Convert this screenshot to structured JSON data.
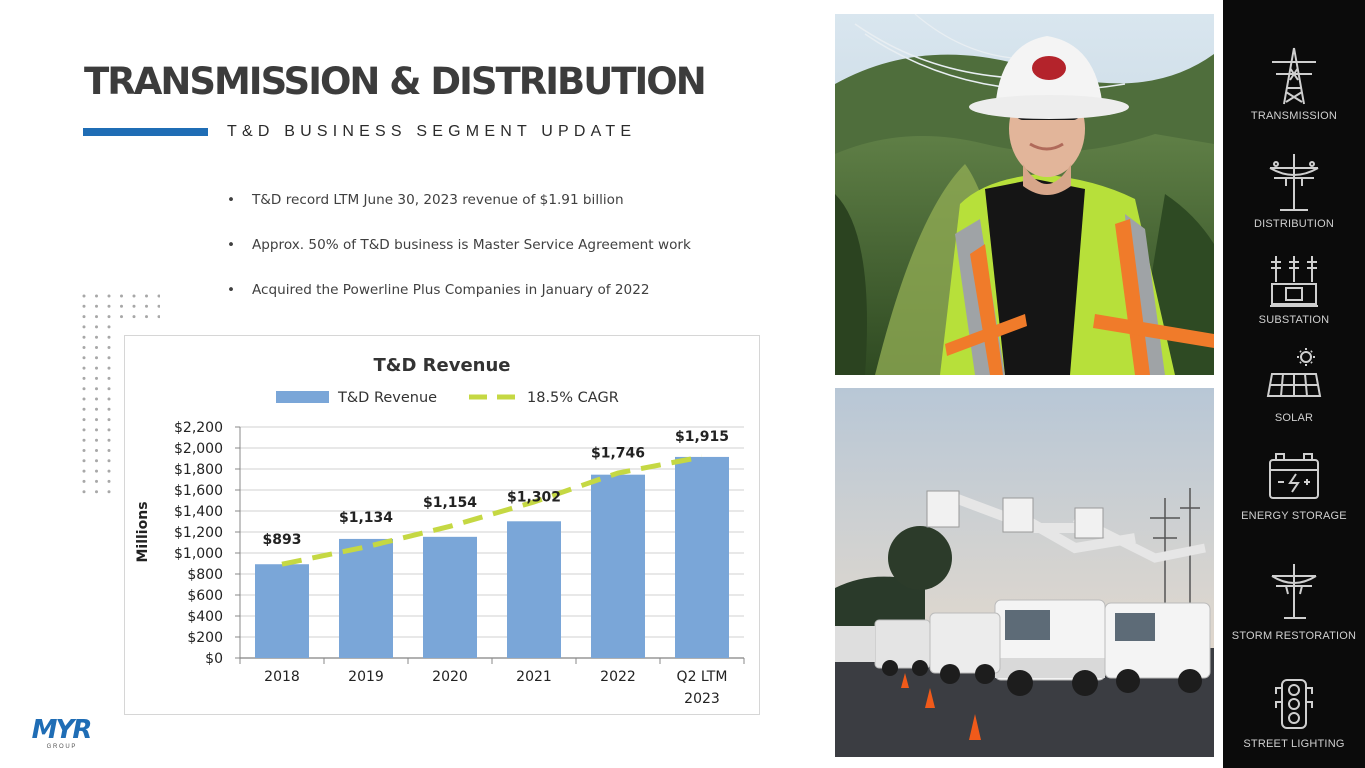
{
  "header": {
    "title": "TRANSMISSION & DISTRIBUTION",
    "subtitle": "T&D BUSINESS SEGMENT UPDATE"
  },
  "bullets": [
    "T&D record LTM June 30, 2023 revenue of $1.91 billion",
    "Approx. 50% of T&D business is Master Service Agreement work",
    "Acquired the Powerline Plus Companies in January of 2022"
  ],
  "chart_data": {
    "type": "bar",
    "title": "T&D Revenue",
    "ylabel": "Millions",
    "xlabel": "",
    "categories": [
      "2018",
      "2019",
      "2020",
      "2021",
      "2022",
      "Q2 LTM 2023"
    ],
    "series": [
      {
        "name": "T&D Revenue",
        "type": "bar",
        "color": "#7aa6d8",
        "values": [
          893,
          1134,
          1154,
          1302,
          1746,
          1915
        ]
      },
      {
        "name": "18.5% CAGR",
        "type": "line",
        "style": "dashed",
        "color": "#c5d843",
        "values": [
          893,
          1058,
          1254,
          1486,
          1762,
          1915
        ]
      }
    ],
    "data_labels": [
      "$893",
      "$1,134",
      "$1,154",
      "$1,302",
      "$1,746",
      "$1,915"
    ],
    "ylim": [
      0,
      2200
    ],
    "yticks": [
      0,
      200,
      400,
      600,
      800,
      1000,
      1200,
      1400,
      1600,
      1800,
      2000,
      2200
    ],
    "ytick_labels": [
      "$0",
      "$200",
      "$400",
      "$600",
      "$800",
      "$1,000",
      "$1,200",
      "$1,400",
      "$1,600",
      "$1,800",
      "$2,000",
      "$2,200"
    ],
    "grid": true,
    "legend_position": "top"
  },
  "sidebar": {
    "items": [
      {
        "label": "TRANSMISSION",
        "icon": "transmission-tower-icon"
      },
      {
        "label": "DISTRIBUTION",
        "icon": "utility-pole-icon"
      },
      {
        "label": "SUBSTATION",
        "icon": "substation-icon"
      },
      {
        "label": "SOLAR",
        "icon": "solar-panel-icon"
      },
      {
        "label": "ENERGY STORAGE",
        "icon": "battery-icon"
      },
      {
        "label": "STORM RESTORATION",
        "icon": "storm-pole-icon"
      },
      {
        "label": "STREET LIGHTING",
        "icon": "traffic-light-icon"
      }
    ]
  },
  "logo": {
    "text": "MYR",
    "subtext": "G R O U P",
    "color": "#1f6db5"
  },
  "photos": [
    {
      "icon": "lineworker-photo"
    },
    {
      "icon": "bucket-trucks-photo"
    }
  ]
}
